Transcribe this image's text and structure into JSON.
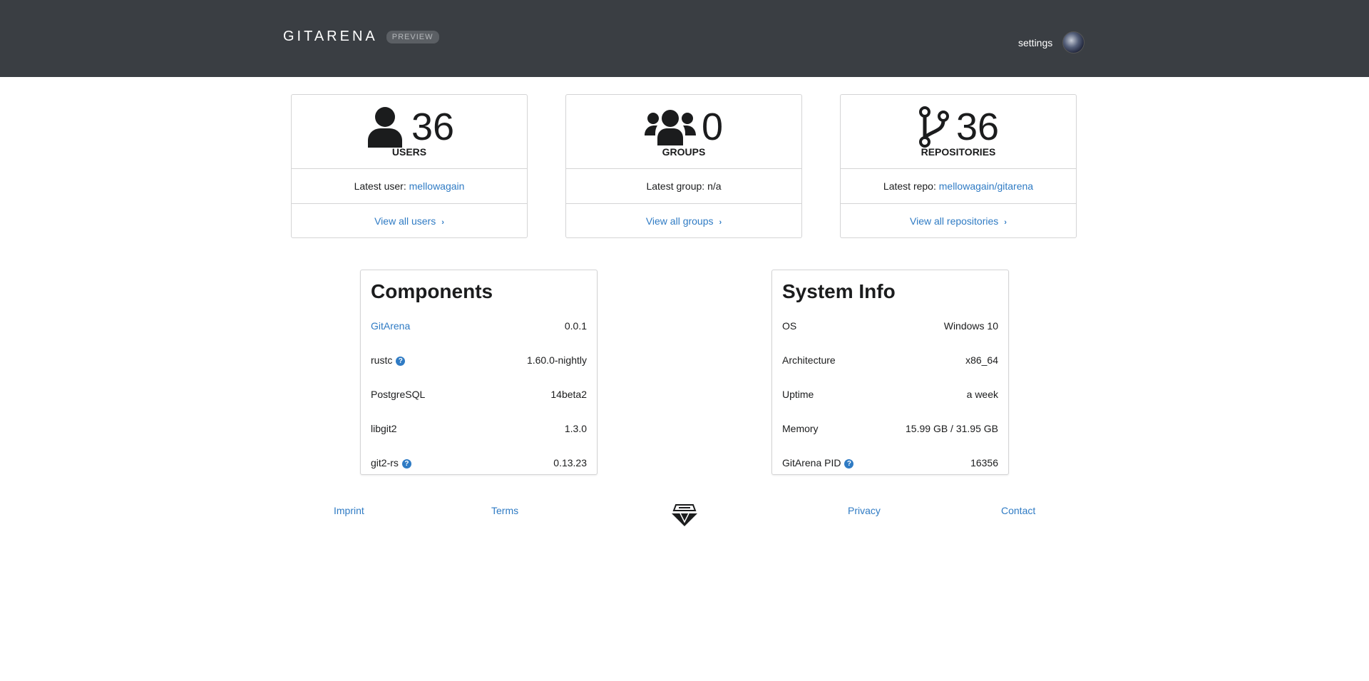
{
  "header": {
    "brand": "GITARENA",
    "badge": "PREVIEW",
    "settings": "settings"
  },
  "stats": [
    {
      "icon": "user-icon",
      "value": "36",
      "label": "USERS",
      "latest_prefix": "Latest user:",
      "latest_value": "mellowagain",
      "link": "View all users"
    },
    {
      "icon": "users-icon",
      "value": "0",
      "label": "GROUPS",
      "latest_prefix": "Latest group:",
      "latest_value": "n/a",
      "link": "View all groups"
    },
    {
      "icon": "code-branch-icon",
      "value": "36",
      "label": "REPOSITORIES",
      "latest_prefix": "Latest repo:",
      "latest_value": "mellowagain/gitarena",
      "link": "View all repositories"
    }
  ],
  "components": {
    "title": "Components",
    "rows": [
      {
        "name": "GitArena",
        "value": "0.0.1"
      },
      {
        "name": "rustc",
        "value": "1.60.0-nightly"
      },
      {
        "name": "PostgreSQL",
        "value": "14beta2"
      },
      {
        "name": "libgit2",
        "value": "1.3.0"
      },
      {
        "name": "git2-rs",
        "value": "0.13.23"
      }
    ]
  },
  "system": {
    "title": "System Info",
    "rows": [
      {
        "name": "OS",
        "value": "Windows 10"
      },
      {
        "name": "Architecture",
        "value": "x86_64"
      },
      {
        "name": "Uptime",
        "value": "a week"
      },
      {
        "name": "Memory",
        "value": "15.99 GB / 31.95 GB"
      },
      {
        "name": "GitArena PID",
        "value": "16356"
      }
    ]
  },
  "footer": {
    "imprint": "Imprint",
    "terms": "Terms",
    "privacy": "Privacy",
    "contact": "Contact"
  },
  "icons": {
    "help": "?",
    "chevron": "›"
  },
  "colors": {
    "header_bg": "#3a3e43",
    "link": "#2f7bc4"
  }
}
